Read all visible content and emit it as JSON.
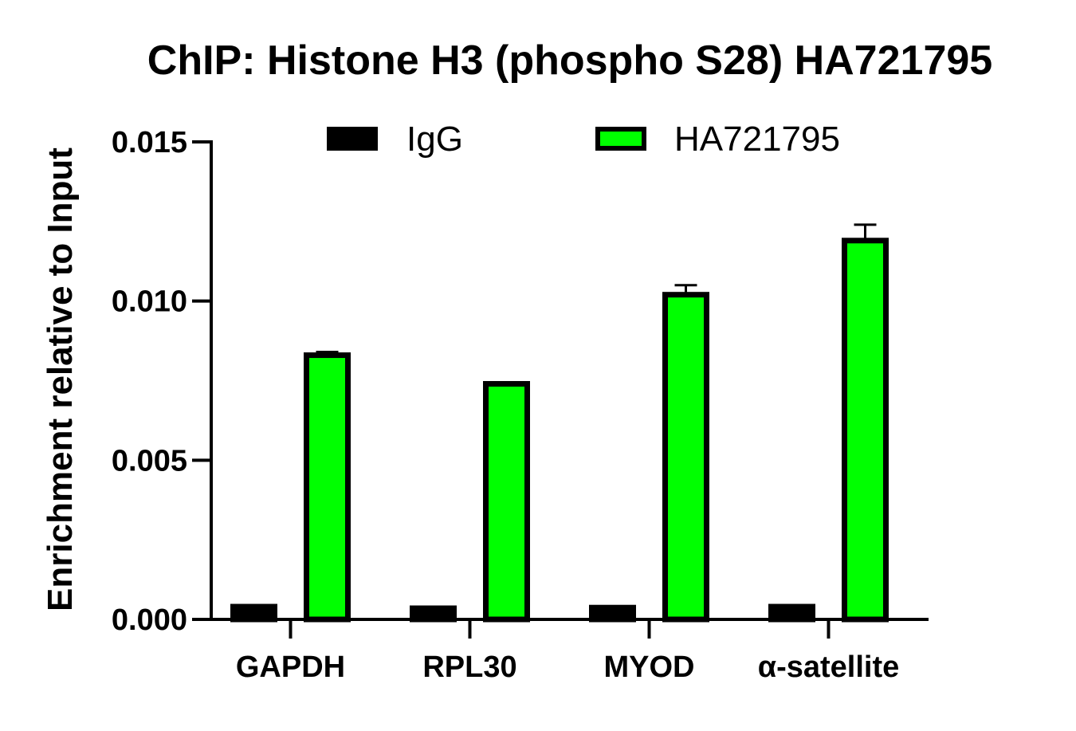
{
  "chart_data": {
    "type": "bar",
    "title": "ChIP: Histone H3 (phospho S28) HA721795",
    "xlabel": "",
    "ylabel": "Enrichment relative to Input",
    "ylim": [
      0,
      0.015
    ],
    "yticks": [
      "0.000",
      "0.005",
      "0.010",
      "0.015"
    ],
    "categories": [
      "GAPDH",
      "RPL30",
      "MYOD",
      "α-satellite"
    ],
    "legend_position": "top",
    "series": [
      {
        "name": "IgG",
        "color": "#000000",
        "values": [
          0.0004,
          0.00035,
          0.00037,
          0.0004
        ],
        "errors": [
          2e-05,
          1e-05,
          2e-05,
          2e-05
        ]
      },
      {
        "name": "HA721795",
        "color": "#00FF00",
        "values": [
          0.0083,
          0.0074,
          0.0102,
          0.0119
        ],
        "errors": [
          0.0001,
          5e-05,
          0.0003,
          0.0005
        ]
      }
    ]
  }
}
